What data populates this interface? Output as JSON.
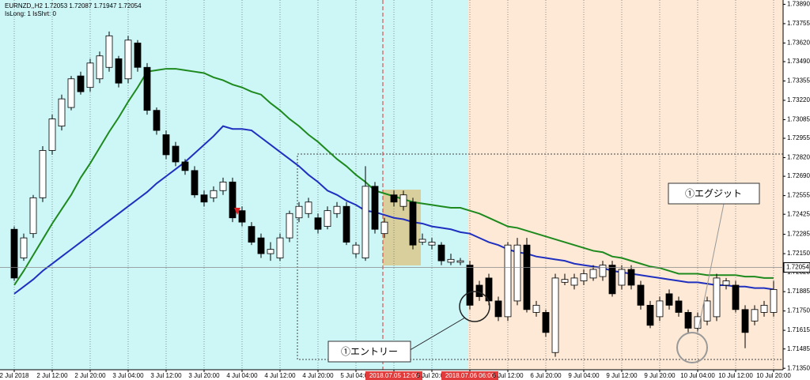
{
  "chart_data": {
    "type": "candlestick",
    "header_lines": [
      "EURNZD,,H2  1.72053 1.72087 1.71947 1.72054",
      "IsLong: 1 IsShrt: 0"
    ],
    "annotations": [
      "①エントリー",
      "①エグジット"
    ],
    "categories": [
      "2 Jul 2018",
      null,
      null,
      null,
      "2 Jul 12:00",
      null,
      null,
      null,
      "2 Jul 20:00",
      null,
      null,
      null,
      "3 Jul 04:00",
      null,
      null,
      null,
      "3 Jul 12:00",
      null,
      null,
      null,
      "3 Jul 20:00",
      null,
      null,
      null,
      "4 Jul 04:00",
      null,
      null,
      null,
      "4 Jul 12:00",
      null,
      null,
      null,
      "4 Jul 20:00",
      null,
      null,
      null,
      "5 Jul 04:00",
      null,
      null,
      null,
      "2018.07.05 12:00",
      null,
      null,
      null,
      "5 Jul 20:00",
      null,
      null,
      null,
      "2018.07.06 06:00",
      null,
      null,
      null,
      "6 Jul 12:00",
      null,
      null,
      null,
      "6 Jul 20:00",
      null,
      null,
      null,
      "9 Jul 04:00",
      null,
      null,
      null,
      "9 Jul 12:00",
      null,
      null,
      null,
      "9 Jul 20:00",
      null,
      null,
      null,
      "10 Jul 04:00",
      null,
      null,
      null,
      "10 Jul 12:00",
      null,
      null,
      null,
      "10 Jul 20:00"
    ],
    "open": [
      1.7232,
      1.7212,
      1.7229,
      1.7254,
      1.7287,
      1.7304,
      1.7317,
      1.7339,
      1.7331,
      1.7337,
      1.7345,
      1.7351,
      1.7337,
      1.7362,
      1.7345,
      1.7315,
      1.7298,
      1.729,
      1.7279,
      1.7273,
      1.7256,
      1.7254,
      1.7259,
      1.7265,
      1.7245,
      1.7234,
      1.7226,
      1.7215,
      1.7212,
      1.7226,
      1.724,
      1.7243,
      1.724,
      1.7234,
      1.7243,
      1.7248,
      1.7215,
      1.7212,
      1.7262,
      1.7229,
      1.7256,
      1.7248,
      1.7251,
      1.7223,
      1.7221,
      1.7221,
      1.7209,
      1.7209,
      1.7207,
      1.7193,
      1.7198,
      1.7182,
      1.7171,
      1.7182,
      1.7221,
      1.7174,
      1.7174,
      1.7146,
      1.7195,
      1.7193,
      1.7196,
      1.7198,
      1.7199,
      1.7207,
      1.7193,
      1.7204,
      1.7193,
      1.7179,
      1.7171,
      1.7187,
      1.7182,
      1.7174,
      1.7163,
      1.7168,
      1.7171,
      1.7193,
      1.7193,
      1.7176,
      1.7168,
      1.7174,
      1.7174
    ],
    "high": [
      1.7234,
      1.7229,
      1.7256,
      1.729,
      1.7312,
      1.7326,
      1.7339,
      1.7342,
      1.7351,
      1.7356,
      1.737,
      1.7353,
      1.7367,
      1.7364,
      1.7348,
      1.7317,
      1.7301,
      1.7293,
      1.7281,
      1.7276,
      1.7259,
      1.7262,
      1.7268,
      1.7268,
      1.7248,
      1.7237,
      1.7229,
      1.7223,
      1.7229,
      1.7245,
      1.7251,
      1.7254,
      1.7243,
      1.7248,
      1.7251,
      1.7251,
      1.7223,
      1.7276,
      1.7265,
      1.724,
      1.7259,
      1.7259,
      1.7254,
      1.7229,
      1.7226,
      1.7223,
      1.7215,
      1.7212,
      1.721,
      1.7196,
      1.7201,
      1.7185,
      1.7223,
      1.7226,
      1.7226,
      1.7182,
      1.7176,
      1.7201,
      1.7201,
      1.7201,
      1.7204,
      1.7207,
      1.721,
      1.721,
      1.7207,
      1.7207,
      1.7196,
      1.7182,
      1.7185,
      1.719,
      1.7185,
      1.7176,
      1.7174,
      1.7185,
      1.7201,
      1.7198,
      1.7196,
      1.7179,
      1.7179,
      1.7182,
      1.7196
    ],
    "low": [
      1.7196,
      1.721,
      1.7226,
      1.7251,
      1.7284,
      1.7301,
      1.7315,
      1.7326,
      1.7328,
      1.7334,
      1.7342,
      1.7331,
      1.7334,
      1.7342,
      1.7312,
      1.7298,
      1.7281,
      1.7276,
      1.727,
      1.7254,
      1.7248,
      1.7251,
      1.7256,
      1.7237,
      1.7234,
      1.7221,
      1.7212,
      1.721,
      1.721,
      1.7223,
      1.7237,
      1.724,
      1.7229,
      1.7232,
      1.724,
      1.7221,
      1.7212,
      1.721,
      1.7229,
      1.7226,
      1.7248,
      1.7245,
      1.7218,
      1.7221,
      1.7218,
      1.7207,
      1.7207,
      1.7207,
      1.7176,
      1.7182,
      1.7179,
      1.7168,
      1.7168,
      1.7179,
      1.7174,
      1.7171,
      1.7157,
      1.7143,
      1.7193,
      1.719,
      1.7193,
      1.7196,
      1.7196,
      1.7185,
      1.719,
      1.719,
      1.7176,
      1.7163,
      1.7168,
      1.7176,
      1.7171,
      1.716,
      1.716,
      1.7165,
      1.7168,
      1.719,
      1.7174,
      1.7149,
      1.7165,
      1.7171,
      1.7171
    ],
    "close": [
      1.7198,
      1.7226,
      1.7254,
      1.7287,
      1.7309,
      1.7323,
      1.7337,
      1.7328,
      1.7348,
      1.7353,
      1.7367,
      1.7334,
      1.7364,
      1.7345,
      1.7315,
      1.7301,
      1.7284,
      1.7279,
      1.7273,
      1.7256,
      1.7251,
      1.7259,
      1.7265,
      1.724,
      1.7237,
      1.7223,
      1.7215,
      1.7218,
      1.7226,
      1.7243,
      1.7248,
      1.7251,
      1.7232,
      1.7245,
      1.7248,
      1.7223,
      1.7221,
      1.7262,
      1.7232,
      1.7237,
      1.7251,
      1.7256,
      1.7221,
      1.7225,
      1.7223,
      1.721,
      1.7211,
      1.721,
      1.7179,
      1.7185,
      1.7182,
      1.7171,
      1.7221,
      1.7221,
      1.7176,
      1.7179,
      1.716,
      1.7198,
      1.7197,
      1.7198,
      1.7201,
      1.7204,
      1.7207,
      1.7187,
      1.7204,
      1.7193,
      1.7179,
      1.7165,
      1.7182,
      1.7179,
      1.7174,
      1.7163,
      1.7171,
      1.7182,
      1.7198,
      1.7196,
      1.7176,
      1.716,
      1.7176,
      1.7179,
      1.719
    ],
    "series": [
      {
        "color": "#1f2fbf",
        "values": [
          1.7187,
          1.7192,
          1.7197,
          1.7203,
          1.7208,
          1.7213,
          1.7218,
          1.7223,
          1.7228,
          1.7233,
          1.7238,
          1.7243,
          1.7248,
          1.7253,
          1.7258,
          1.7264,
          1.7269,
          1.7274,
          1.7279,
          1.7285,
          1.7291,
          1.7297,
          1.7304,
          1.7302,
          1.7302,
          1.7301,
          1.7296,
          1.7291,
          1.7286,
          1.7281,
          1.7276,
          1.727,
          1.7265,
          1.7259,
          1.7256,
          1.7252,
          1.7249,
          1.7245,
          1.7244,
          1.7242,
          1.724,
          1.7239,
          1.7237,
          1.7236,
          1.7234,
          1.7233,
          1.7232,
          1.723,
          1.7229,
          1.7226,
          1.7223,
          1.7221,
          1.7218,
          1.7216,
          1.7215,
          1.7213,
          1.7212,
          1.7211,
          1.721,
          1.7208,
          1.7207,
          1.7206,
          1.7205,
          1.7203,
          1.7202,
          1.7201,
          1.72,
          1.7199,
          1.7198,
          1.7197,
          1.7196,
          1.7195,
          1.7195,
          1.7194,
          1.7193,
          1.7193,
          1.7192,
          1.7192,
          1.7191,
          1.7191,
          1.719
        ]
      },
      {
        "color": "#1e8a1e",
        "values": [
          1.7193,
          1.7203,
          1.7214,
          1.7225,
          1.7236,
          1.7246,
          1.7256,
          1.7268,
          1.7278,
          1.7289,
          1.73,
          1.731,
          1.7321,
          1.7331,
          1.7342,
          1.7343,
          1.7344,
          1.7344,
          1.7343,
          1.7342,
          1.7341,
          1.7338,
          1.7336,
          1.7333,
          1.7331,
          1.7328,
          1.7326,
          1.732,
          1.7315,
          1.7309,
          1.7304,
          1.7298,
          1.7293,
          1.7287,
          1.7281,
          1.7276,
          1.727,
          1.7265,
          1.7259,
          1.7257,
          1.7255,
          1.7253,
          1.7251,
          1.725,
          1.7249,
          1.7248,
          1.7247,
          1.7247,
          1.7245,
          1.7243,
          1.724,
          1.7237,
          1.7234,
          1.7233,
          1.7231,
          1.7229,
          1.7227,
          1.7225,
          1.7223,
          1.7221,
          1.7219,
          1.7217,
          1.7216,
          1.7213,
          1.7212,
          1.721,
          1.7208,
          1.7206,
          1.7205,
          1.7203,
          1.7201,
          1.7201,
          1.7201,
          1.72,
          1.72,
          1.72,
          1.72,
          1.7199,
          1.7199,
          1.7198,
          1.7198
        ]
      }
    ],
    "ylim": [
      1.7134,
      1.7392
    ],
    "yticks": [
      {
        "value": 1.7389,
        "label": "1.73890"
      },
      {
        "value": 1.73755,
        "label": "1.73755"
      },
      {
        "value": 1.7362,
        "label": "1.73620"
      },
      {
        "value": 1.7349,
        "label": "1.73490"
      },
      {
        "value": 1.73355,
        "label": "1.73355"
      },
      {
        "value": 1.7322,
        "label": "1.73220"
      },
      {
        "value": 1.73085,
        "label": "1.73085"
      },
      {
        "value": 1.72955,
        "label": "1.72955"
      },
      {
        "value": 1.7282,
        "label": "1.72820"
      },
      {
        "value": 1.7269,
        "label": "1.72690"
      },
      {
        "value": 1.72555,
        "label": "1.72555"
      },
      {
        "value": 1.72425,
        "label": "1.72425"
      },
      {
        "value": 1.72285,
        "label": "1.72285"
      },
      {
        "value": 1.7215,
        "label": "1.72150"
      },
      {
        "value": 1.7202,
        "label": "1.72020"
      },
      {
        "value": 1.71885,
        "label": "1.71885"
      },
      {
        "value": 1.7175,
        "label": "1.71750"
      },
      {
        "value": 1.71615,
        "label": "1.71615"
      },
      {
        "value": 1.71485,
        "label": "1.71485"
      },
      {
        "value": 1.7135,
        "label": "1.71350"
      }
    ],
    "last_price": {
      "value": 1.72054,
      "label": "1.72054"
    },
    "grid": true
  }
}
